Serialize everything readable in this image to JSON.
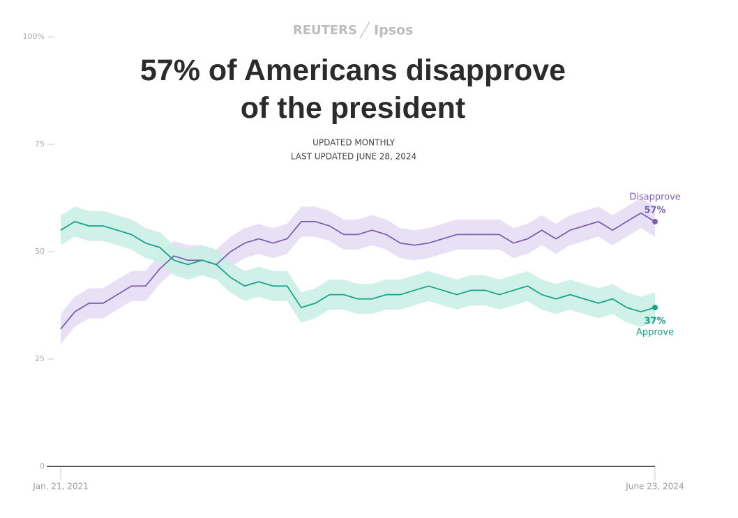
{
  "chart_data": {
    "type": "line",
    "brand": "REUTERS",
    "partner": "Ipsos",
    "title": "57% of Americans disapprove of the president",
    "subtitle": "UPDATED MONTHLY",
    "updated": "LAST UPDATED JUNE 28, 2024",
    "categories": [
      "Jan. 21, 2021",
      null,
      null,
      null,
      null,
      null,
      null,
      null,
      null,
      null,
      null,
      null,
      null,
      null,
      null,
      null,
      null,
      null,
      null,
      null,
      null,
      null,
      null,
      null,
      null,
      null,
      null,
      null,
      null,
      null,
      null,
      null,
      null,
      null,
      null,
      null,
      null,
      null,
      null,
      null,
      null,
      null,
      "June 23, 2024"
    ],
    "ylim": [
      0,
      100
    ],
    "yticks": [
      0,
      25,
      50,
      75,
      {
        "value": 100,
        "label": "100%"
      }
    ],
    "series": [
      {
        "name": "Disapprove",
        "color": "#7d5fb2",
        "band_color": "#e4dcf3",
        "error": 3.5,
        "values": [
          32,
          36,
          38,
          38,
          40,
          42,
          42,
          46,
          49,
          48,
          48,
          47,
          50,
          52,
          53,
          52,
          53,
          57,
          57,
          56,
          54,
          54,
          55,
          54,
          52,
          51.5,
          52,
          53,
          54,
          54,
          54,
          54,
          52,
          53,
          55,
          53,
          55,
          56,
          57,
          55,
          57,
          59,
          57
        ],
        "value_labels": [
          null,
          null,
          null,
          null,
          null,
          null,
          null,
          null,
          null,
          null,
          null,
          null,
          null,
          null,
          null,
          null,
          null,
          null,
          null,
          null,
          null,
          null,
          null,
          null,
          null,
          null,
          null,
          null,
          null,
          null,
          null,
          null,
          null,
          null,
          null,
          null,
          null,
          null,
          null,
          null,
          null,
          null,
          "57%"
        ]
      },
      {
        "name": "Approve",
        "color": "#17a488",
        "band_color": "#c8efe4",
        "error": 3.5,
        "values": [
          55,
          57,
          56,
          56,
          55,
          54,
          52,
          51,
          48,
          47,
          48,
          47,
          44,
          42,
          43,
          42,
          42,
          37,
          38,
          40,
          40,
          39,
          39,
          40,
          40,
          41,
          42,
          41,
          40,
          41,
          41,
          40,
          41,
          42,
          40,
          39,
          40,
          39,
          38,
          39,
          37,
          36,
          37
        ],
        "value_labels": [
          null,
          null,
          null,
          null,
          null,
          null,
          null,
          null,
          null,
          null,
          null,
          null,
          null,
          null,
          null,
          null,
          null,
          null,
          null,
          null,
          null,
          null,
          null,
          null,
          null,
          null,
          null,
          null,
          null,
          null,
          null,
          null,
          null,
          null,
          null,
          null,
          null,
          null,
          null,
          null,
          null,
          null,
          "37%"
        ]
      }
    ]
  }
}
